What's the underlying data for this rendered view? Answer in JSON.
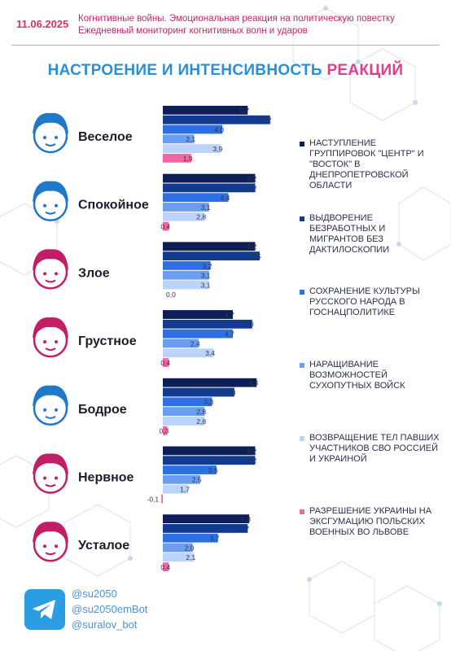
{
  "header": {
    "date": "11.06.2025",
    "line1": "Когнитивные войны. Эмоциональная реакция на политическую повестку",
    "line2": "Ежедневный мониторинг когнитивных волн и ударов"
  },
  "title": {
    "part1": "НАСТРОЕНИЕ И ИНТЕНСИВНОСТЬ",
    "part2": "РЕАКЦИЙ"
  },
  "colors": {
    "s1": "#0d1f56",
    "s2": "#123a8f",
    "s3": "#2f6fe4",
    "s4": "#6b9ef0",
    "s5": "#bcd3fb",
    "s6": "#f066a6",
    "face_blue": "#1f78c8",
    "face_pink": "#c21e66"
  },
  "chart_data": {
    "type": "bar",
    "orientation": "horizontal",
    "categories": [
      "Веселое",
      "Спокойное",
      "Злое",
      "Грустное",
      "Бодрое",
      "Нервное",
      "Усталое"
    ],
    "category_icons": [
      "happy-face-icon",
      "calm-face-icon",
      "angry-face-icon",
      "sad-face-icon",
      "cheerful-face-icon",
      "nervous-face-icon",
      "tired-face-icon"
    ],
    "series": [
      {
        "name": "НАСТУПЛЕНИЕ ГРУППИРОВОК \"ЦЕНТР\" И \"ВОСТОК\" В ДНЕПРОПЕТРОВСКОЙ ОБЛАСТИ",
        "values": [
          5.7,
          6.2,
          6.2,
          4.7,
          6.3,
          6.2,
          5.8
        ]
      },
      {
        "name": "ВЫДВОРЕНИЕ БЕЗРАБОТНЫХ И МИГРАНТОВ БЕЗ ДАКТИЛОСКОПИИ",
        "values": [
          7.2,
          6.2,
          6.5,
          6.0,
          4.8,
          6.2,
          5.7
        ]
      },
      {
        "name": "СОХРАНЕНИЕ КУЛЬТУРЫ РУССКОГО НАРОДА В ГОСНАЦПОЛИТИКЕ",
        "values": [
          4.0,
          4.4,
          3.2,
          4.7,
          3.3,
          3.6,
          3.7
        ]
      },
      {
        "name": "НАРАЩИВАНИЕ ВОЗМОЖНОСТЕЙ СУХОПУТНЫХ ВОЙСК",
        "values": [
          2.1,
          3.1,
          3.1,
          2.4,
          2.8,
          2.5,
          2.0
        ]
      },
      {
        "name": "ВОЗВРАЩЕНИЕ ТЕЛ ПАВШИХ УЧАСТНИКОВ СВО РОССИЕЙ И УКРАИНОЙ",
        "values": [
          3.9,
          2.8,
          3.1,
          3.4,
          2.8,
          1.7,
          2.1
        ]
      },
      {
        "name": "РАЗРЕШЕНИЕ УКРАИНЫ НА ЭКСГУМАЦИЮ ПОЛЬСКИХ ВОЕННЫХ ВО ЛЬВОВЕ",
        "values": [
          1.9,
          0.4,
          0.0,
          0.4,
          0.3,
          -0.1,
          0.4
        ]
      }
    ],
    "value_labels": [
      [
        "5,7",
        "7,2",
        "4,0",
        "2,1",
        "3,9",
        "1,9"
      ],
      [
        "6,2",
        "6,2",
        "4,4",
        "3,1",
        "2,8",
        "0,4"
      ],
      [
        "6,2",
        "6,5",
        "3,2",
        "3,1",
        "3,1",
        "0,0"
      ],
      [
        "4,7",
        "6,0",
        "4,7",
        "2,4",
        "3,4",
        "0,4"
      ],
      [
        "6,3",
        "4,8",
        "3,3",
        "2,8",
        "2,8",
        "0,3"
      ],
      [
        "6,2",
        "6,2",
        "3,6",
        "2,5",
        "1,7",
        "-0,1"
      ],
      [
        "5,8",
        "5,7",
        "3,7",
        "2,0",
        "2,1",
        "0,4"
      ]
    ],
    "grid": false,
    "legend_position": "right"
  },
  "footer": {
    "handles": [
      "@su2050",
      "@su2050emBot",
      "@suralov_bot"
    ],
    "logo_icon": "telegram-icon"
  }
}
